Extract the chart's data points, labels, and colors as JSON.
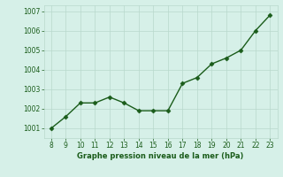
{
  "x": [
    8,
    9,
    10,
    11,
    12,
    13,
    14,
    15,
    16,
    17,
    18,
    19,
    20,
    21,
    22,
    23
  ],
  "y": [
    1001.0,
    1001.6,
    1002.3,
    1002.3,
    1002.6,
    1002.3,
    1001.9,
    1001.9,
    1001.9,
    1003.3,
    1003.6,
    1004.3,
    1004.6,
    1005.0,
    1006.0,
    1006.8
  ],
  "line_color": "#1a5c1a",
  "marker": "D",
  "marker_size": 2.5,
  "xlabel": "Graphe pression niveau de la mer (hPa)",
  "xlabel_color": "#1a5c1a",
  "bg_color": "#d6f0e8",
  "grid_color": "#b8d8cc",
  "tick_color": "#1a5c1a",
  "ylim": [
    1000.5,
    1007.3
  ],
  "xlim": [
    7.5,
    23.5
  ],
  "yticks": [
    1001,
    1002,
    1003,
    1004,
    1005,
    1006,
    1007
  ],
  "xticks": [
    8,
    9,
    10,
    11,
    12,
    13,
    14,
    15,
    16,
    17,
    18,
    19,
    20,
    21,
    22,
    23
  ]
}
